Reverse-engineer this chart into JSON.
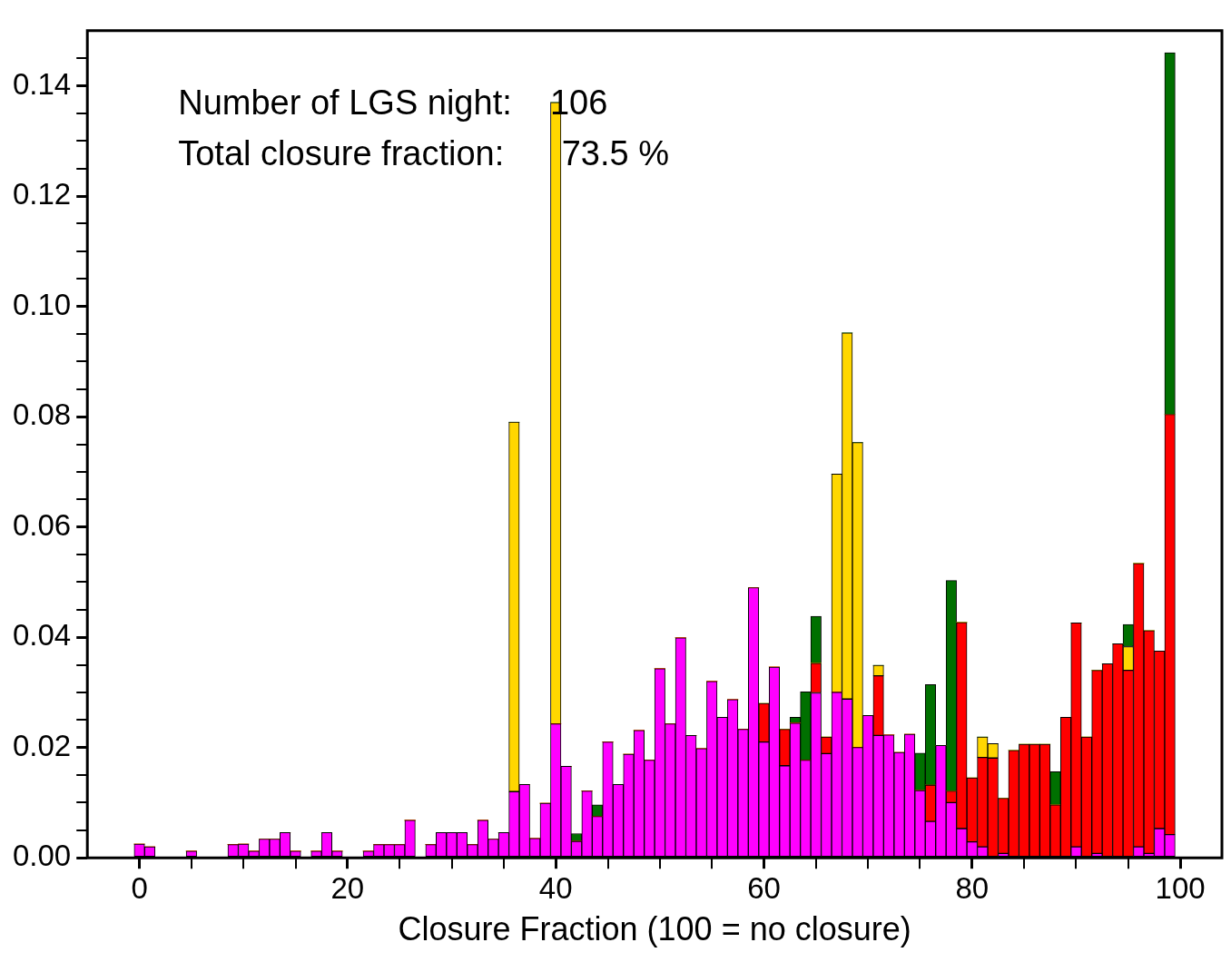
{
  "chart_data": {
    "type": "bar",
    "xlabel": "Closure Fraction (100 = no closure)",
    "annotations": [
      "Number of LGS night:    106",
      "Total closure fraction:      73.5 %"
    ],
    "x": [
      0,
      1,
      2,
      3,
      4,
      5,
      6,
      7,
      8,
      9,
      10,
      11,
      12,
      13,
      14,
      15,
      16,
      17,
      18,
      19,
      20,
      21,
      22,
      23,
      24,
      25,
      26,
      27,
      28,
      29,
      30,
      31,
      32,
      33,
      34,
      35,
      36,
      37,
      38,
      39,
      40,
      41,
      42,
      43,
      44,
      45,
      46,
      47,
      48,
      49,
      50,
      51,
      52,
      53,
      54,
      55,
      56,
      57,
      58,
      59,
      60,
      61,
      62,
      63,
      64,
      65,
      66,
      67,
      68,
      69,
      70,
      71,
      72,
      73,
      74,
      75,
      76,
      77,
      78,
      79,
      80,
      81,
      82,
      83,
      84,
      85,
      86,
      87,
      88,
      89,
      90,
      91,
      92,
      93,
      94,
      95,
      96,
      97,
      98,
      99
    ],
    "stacked": true,
    "series": [
      {
        "color": "#ff00ff",
        "values": [
          0.0025,
          0.002,
          0,
          0,
          0,
          0.0012,
          0,
          0,
          0,
          0.0024,
          0.0025,
          0.0012,
          0.0034,
          0.0034,
          0.0046,
          0.0012,
          0,
          0.0012,
          0.0046,
          0.0012,
          0,
          0,
          0.0012,
          0.0024,
          0.0024,
          0.0024,
          0.0068,
          0,
          0.0024,
          0.0046,
          0.0046,
          0.0046,
          0.0024,
          0.0068,
          0.0034,
          0.0046,
          0.012,
          0.0133,
          0.0035,
          0.0099,
          0.0243,
          0.0166,
          0.003,
          0.0121,
          0.0075,
          0.021,
          0.0133,
          0.0188,
          0.0231,
          0.0177,
          0.0343,
          0.0243,
          0.0399,
          0.0222,
          0.0198,
          0.032,
          0.0255,
          0.0287,
          0.0233,
          0.049,
          0.021,
          0.0346,
          0.0167,
          0.0244,
          0.0177,
          0.0299,
          0.0189,
          0.03,
          0.0288,
          0.02,
          0.0258,
          0.0222,
          0.0223,
          0.0191,
          0.0224,
          0.0122,
          0.0066,
          0.0204,
          0.01,
          0.0053,
          0.0029,
          0.002,
          0,
          0.0008,
          0,
          0,
          0,
          0,
          0,
          0,
          0.002,
          0,
          0.0008,
          0,
          0,
          0,
          0.002,
          0.0008,
          0.0053,
          0.0042
        ]
      },
      {
        "color": "#ff0000",
        "values": [
          0,
          0,
          0,
          0,
          0,
          0,
          0,
          0,
          0,
          0,
          0,
          0,
          0,
          0,
          0,
          0,
          0,
          0,
          0,
          0,
          0,
          0,
          0,
          0,
          0,
          0,
          0,
          0,
          0,
          0,
          0,
          0,
          0,
          0,
          0,
          0,
          0,
          0,
          0,
          0,
          0,
          0,
          0,
          0,
          0,
          0,
          0,
          0,
          0,
          0,
          0,
          0,
          0,
          0,
          0,
          0,
          0,
          0,
          0,
          0,
          0.007,
          0,
          0.0066,
          0,
          0,
          0.0054,
          0.003,
          0,
          0,
          0,
          0,
          0.0108,
          0,
          0,
          0,
          0,
          0.0066,
          0,
          0.0021,
          0.0374,
          0.0116,
          0.0162,
          0.0181,
          0.01,
          0.0195,
          0.0206,
          0.0206,
          0.0206,
          0.0096,
          0.0255,
          0.0406,
          0.0219,
          0.0332,
          0.0352,
          0.0388,
          0.034,
          0.0514,
          0.0404,
          0.0322,
          0.0762
        ]
      },
      {
        "color": "#ffd700",
        "values": [
          0,
          0,
          0,
          0,
          0,
          0,
          0,
          0,
          0,
          0,
          0,
          0,
          0,
          0,
          0,
          0,
          0,
          0,
          0,
          0,
          0,
          0,
          0,
          0,
          0,
          0,
          0,
          0,
          0,
          0,
          0,
          0,
          0,
          0,
          0,
          0,
          0.067,
          0,
          0,
          0,
          0.1127,
          0,
          0,
          0,
          0,
          0,
          0,
          0,
          0,
          0,
          0,
          0,
          0,
          0,
          0,
          0,
          0,
          0,
          0,
          0,
          0,
          0,
          0,
          0,
          0,
          0,
          0,
          0.0396,
          0.0664,
          0.0553,
          0,
          0.0019,
          0,
          0,
          0,
          0,
          0,
          0,
          0,
          0,
          0,
          0.0037,
          0.0026,
          0,
          0,
          0,
          0,
          0,
          0,
          0,
          0,
          0,
          0,
          0,
          0,
          0.0043,
          0,
          0,
          0,
          0
        ]
      },
      {
        "color": "#007000",
        "values": [
          0,
          0,
          0,
          0,
          0,
          0,
          0,
          0,
          0,
          0,
          0,
          0,
          0,
          0,
          0,
          0,
          0,
          0,
          0,
          0,
          0,
          0,
          0,
          0,
          0,
          0,
          0,
          0,
          0,
          0,
          0,
          0,
          0,
          0,
          0,
          0,
          0,
          0,
          0,
          0,
          0,
          0,
          0.0014,
          0,
          0.0021,
          0,
          0,
          0,
          0,
          0,
          0,
          0,
          0,
          0,
          0,
          0,
          0,
          0,
          0,
          0,
          0,
          0,
          0,
          0.0011,
          0.0124,
          0.0085,
          0,
          0,
          0,
          0,
          0,
          0,
          0,
          0,
          0,
          0.0068,
          0.0182,
          0,
          0.0382,
          0,
          0,
          0,
          0,
          0,
          0,
          0,
          0,
          0,
          0.006,
          0,
          0,
          0,
          0,
          0,
          0,
          0.004,
          0,
          0,
          0,
          0.0656
        ]
      }
    ],
    "xlim": [
      -5,
      104
    ],
    "xticks": [
      0,
      {
        "value": 5,
        "label": null
      },
      {
        "value": 10,
        "label": null
      },
      {
        "value": 15,
        "label": null
      },
      20,
      {
        "value": 25,
        "label": null
      },
      {
        "value": 30,
        "label": null
      },
      {
        "value": 35,
        "label": null
      },
      40,
      {
        "value": 45,
        "label": null
      },
      {
        "value": 50,
        "label": null
      },
      {
        "value": 55,
        "label": null
      },
      60,
      {
        "value": 65,
        "label": null
      },
      {
        "value": 70,
        "label": null
      },
      {
        "value": 75,
        "label": null
      },
      80,
      {
        "value": 85,
        "label": null
      },
      {
        "value": 90,
        "label": null
      },
      {
        "value": 95,
        "label": null
      },
      100
    ],
    "ylim": [
      0,
      0.15
    ],
    "yticks": [
      {
        "value": 0,
        "label": "0.00"
      },
      {
        "value": 0.005,
        "label": null
      },
      {
        "value": 0.01,
        "label": null
      },
      {
        "value": 0.015,
        "label": null
      },
      {
        "value": 0.02,
        "label": "0.02"
      },
      {
        "value": 0.025,
        "label": null
      },
      {
        "value": 0.03,
        "label": null
      },
      {
        "value": 0.035,
        "label": null
      },
      {
        "value": 0.04,
        "label": "0.04"
      },
      {
        "value": 0.045,
        "label": null
      },
      {
        "value": 0.05,
        "label": null
      },
      {
        "value": 0.055,
        "label": null
      },
      {
        "value": 0.06,
        "label": "0.06"
      },
      {
        "value": 0.065,
        "label": null
      },
      {
        "value": 0.07,
        "label": null
      },
      {
        "value": 0.075,
        "label": null
      },
      {
        "value": 0.08,
        "label": "0.08"
      },
      {
        "value": 0.085,
        "label": null
      },
      {
        "value": 0.09,
        "label": null
      },
      {
        "value": 0.095,
        "label": null
      },
      {
        "value": 0.1,
        "label": "0.10"
      },
      {
        "value": 0.105,
        "label": null
      },
      {
        "value": 0.11,
        "label": null
      },
      {
        "value": 0.115,
        "label": null
      },
      {
        "value": 0.12,
        "label": "0.12"
      },
      {
        "value": 0.125,
        "label": null
      },
      {
        "value": 0.13,
        "label": null
      },
      {
        "value": 0.135,
        "label": null
      },
      {
        "value": 0.14,
        "label": "0.14"
      },
      {
        "value": 0.145,
        "label": null
      }
    ],
    "grid": false,
    "legend": false
  }
}
